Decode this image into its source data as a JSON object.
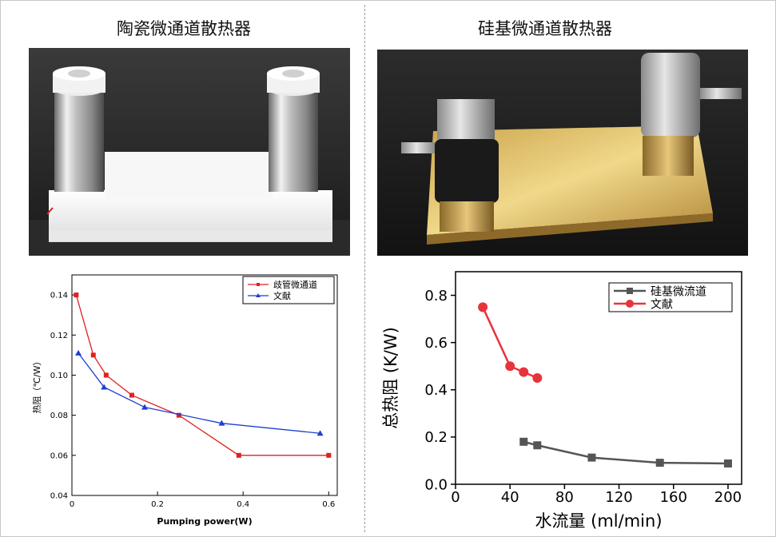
{
  "titles": {
    "left": "陶瓷微通道散热器",
    "right": "硅基微通道散热器"
  },
  "chart_data": [
    {
      "type": "line",
      "title": "",
      "xlabel": "Pumping power(W)",
      "ylabel": "热阻（℃/W）",
      "xlim": [
        0,
        0.62
      ],
      "ylim": [
        0.04,
        0.15
      ],
      "xticks": [
        "0",
        "0.2",
        "0.4",
        "0.6"
      ],
      "yticks": [
        "0.04",
        "0.06",
        "0.08",
        "0.10",
        "0.12",
        "0.14"
      ],
      "legend_position": "top-right",
      "series": [
        {
          "name": "歧管微通道",
          "color": "#e02020",
          "marker": "square",
          "x": [
            0.01,
            0.05,
            0.08,
            0.14,
            0.25,
            0.39,
            0.6
          ],
          "y": [
            0.14,
            0.11,
            0.1,
            0.09,
            0.08,
            0.06,
            0.06
          ]
        },
        {
          "name": "文献",
          "color": "#1f3fd0",
          "marker": "triangle",
          "x": [
            0.015,
            0.075,
            0.17,
            0.35,
            0.58
          ],
          "y": [
            0.111,
            0.094,
            0.084,
            0.076,
            0.071
          ]
        }
      ]
    },
    {
      "type": "line",
      "title": "",
      "xlabel": "水流量 (ml/min)",
      "ylabel": "总热阻 (K/W)",
      "xlim": [
        0,
        210
      ],
      "ylim": [
        0,
        0.9
      ],
      "xticks": [
        "0",
        "40",
        "80",
        "120",
        "160",
        "200"
      ],
      "yticks": [
        "0.0",
        "0.2",
        "0.4",
        "0.6",
        "0.8"
      ],
      "legend_position": "top-right",
      "series": [
        {
          "name": "硅基微流道",
          "color": "#555555",
          "marker": "square",
          "x": [
            50,
            60,
            100,
            150,
            200
          ],
          "y": [
            0.18,
            0.165,
            0.113,
            0.091,
            0.088
          ]
        },
        {
          "name": "文献",
          "color": "#e8333a",
          "marker": "circle",
          "x": [
            20,
            40,
            50,
            60
          ],
          "y": [
            0.75,
            0.5,
            0.475,
            0.45
          ]
        }
      ]
    }
  ]
}
